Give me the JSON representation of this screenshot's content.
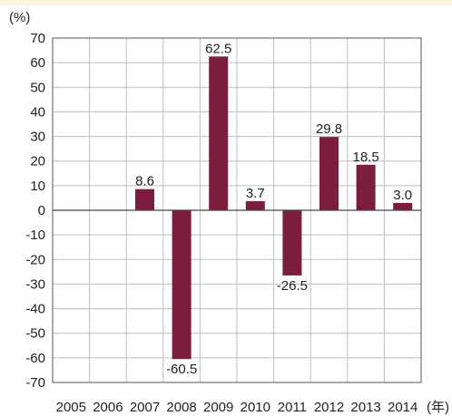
{
  "chart_data": {
    "type": "bar",
    "categories": [
      "2005",
      "2006",
      "2007",
      "2008",
      "2009",
      "2010",
      "2011",
      "2012",
      "2013",
      "2014"
    ],
    "values": [
      null,
      null,
      8.6,
      -60.5,
      62.5,
      3.7,
      -26.5,
      29.8,
      18.5,
      3.0
    ],
    "data_labels": [
      "",
      "",
      "8.6",
      "-60.5",
      "62.5",
      "3.7",
      "-26.5",
      "29.8",
      "18.5",
      "3.0"
    ],
    "ylim": [
      -70,
      70
    ],
    "yticks": [
      70,
      60,
      50,
      40,
      30,
      20,
      10,
      0,
      -10,
      -20,
      -30,
      -40,
      -50,
      -60,
      -70
    ],
    "y_unit": "(%)",
    "x_unit": "(年)",
    "grid": true,
    "bar_color": "#7a1e3c"
  }
}
